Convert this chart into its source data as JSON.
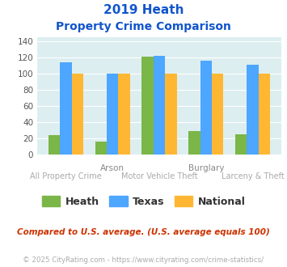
{
  "title_line1": "2019 Heath",
  "title_line2": "Property Crime Comparison",
  "categories": [
    "All Property Crime",
    "Arson",
    "Motor Vehicle Theft",
    "Burglary",
    "Larceny & Theft"
  ],
  "top_labels": [
    "",
    "Arson",
    "",
    "Burglary",
    ""
  ],
  "bottom_labels": [
    "All Property Crime",
    "",
    "Motor Vehicle Theft",
    "",
    "Larceny & Theft"
  ],
  "heath": [
    24,
    16,
    121,
    29,
    25
  ],
  "texas": [
    114,
    100,
    122,
    116,
    111
  ],
  "national": [
    100,
    100,
    100,
    100,
    100
  ],
  "heath_color": "#7ab648",
  "texas_color": "#4da6ff",
  "national_color": "#ffb733",
  "bg_color": "#ddeef0",
  "title_color": "#1155cc",
  "top_label_color": "#888888",
  "bottom_label_color": "#aaaaaa",
  "ylabel_values": [
    0,
    20,
    40,
    60,
    80,
    100,
    120,
    140
  ],
  "ylim": [
    0,
    145
  ],
  "note": "Compared to U.S. average. (U.S. average equals 100)",
  "note_color": "#cc3300",
  "footer": "© 2025 CityRating.com - https://www.cityrating.com/crime-statistics/",
  "footer_color": "#aaaaaa",
  "legend_labels": [
    "Heath",
    "Texas",
    "National"
  ],
  "bar_width": 0.25
}
